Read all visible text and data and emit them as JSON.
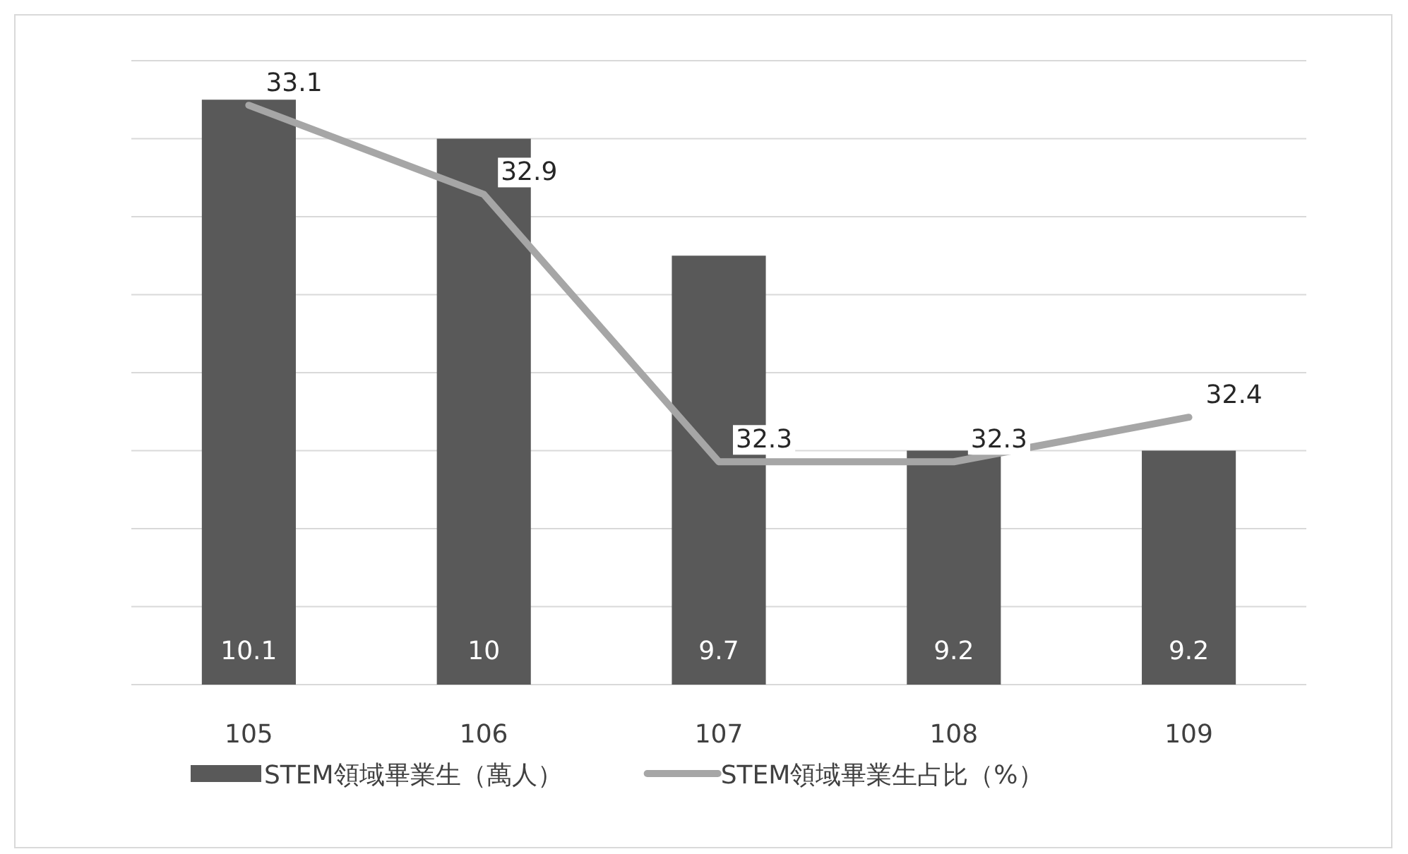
{
  "chart_data": {
    "type": "bar",
    "categories": [
      "105",
      "106",
      "107",
      "108",
      "109"
    ],
    "series": [
      {
        "name": "STEM領域畢業生（萬人）",
        "color": "#595959",
        "values": [
          10.1,
          10,
          9.7,
          9.2,
          9.2
        ]
      },
      {
        "name": "STEM領域畢業生占比（%）",
        "type": "line",
        "axis": "y2",
        "color": "#a6a6a6",
        "values": [
          33.1,
          32.9,
          32.3,
          32.3,
          32.4
        ]
      }
    ],
    "ylim": [
      8.6,
      10.2
    ],
    "yticks": [
      {
        "value": 8.6,
        "label": null
      },
      {
        "value": 8.8,
        "label": null
      },
      {
        "value": 9.0,
        "label": null
      },
      {
        "value": 9.2,
        "label": null
      },
      {
        "value": 9.4,
        "label": null
      },
      {
        "value": 9.6,
        "label": null
      },
      {
        "value": 9.8,
        "label": null
      },
      {
        "value": 10.0,
        "label": null
      },
      {
        "value": 10.2,
        "label": null
      }
    ],
    "y2lim": [
      31.8,
      33.2
    ],
    "grid": "y",
    "tick_labels": "x",
    "data_labels": true,
    "legend": "bottom"
  }
}
